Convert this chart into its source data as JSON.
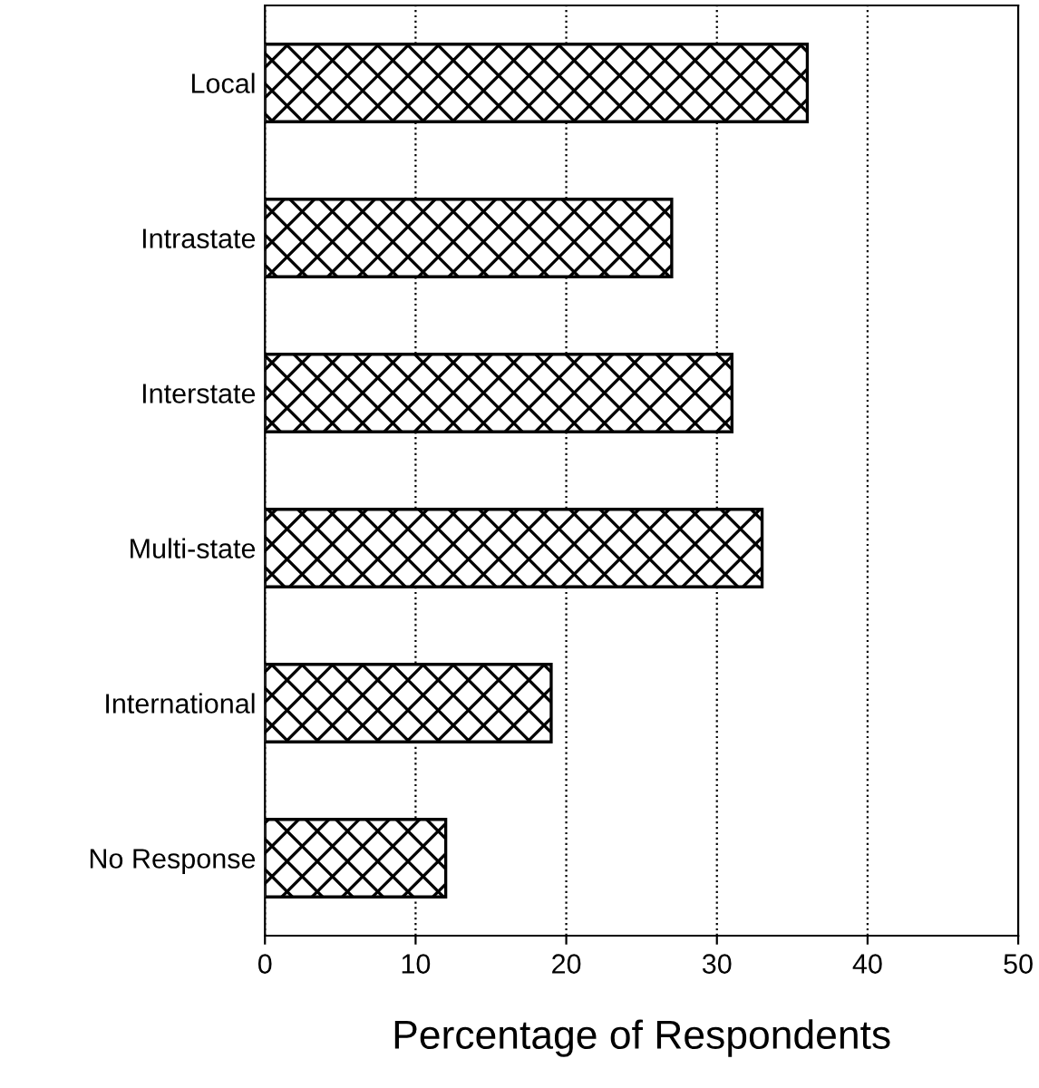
{
  "chart_data": {
    "type": "bar",
    "orientation": "horizontal",
    "xlabel": "Percentage of Respondents",
    "categories": [
      "Local",
      "Intrastate",
      "Interstate",
      "Multi-state",
      "International",
      "No Response"
    ],
    "values": [
      36,
      27,
      31,
      33,
      19,
      12
    ],
    "color": "#000000",
    "xlim": [
      0,
      50
    ],
    "xticks": [
      0,
      10,
      20,
      30,
      40,
      50
    ],
    "grid": "x"
  }
}
